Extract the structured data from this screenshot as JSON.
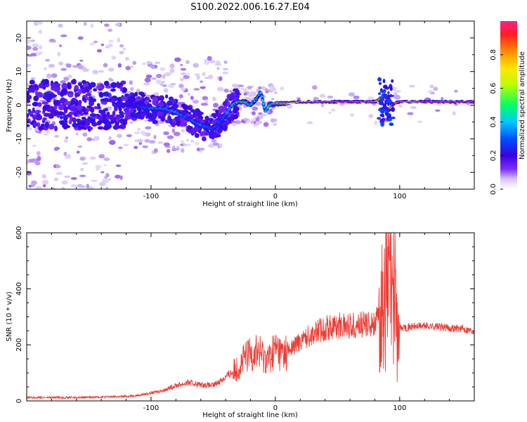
{
  "title": "S100.2022.006.16.27.E04",
  "colors": {
    "snr_line": "#ee3b33",
    "frame": "#000000",
    "colormap": [
      "#ffffff",
      "#d9c7f6",
      "#7b2ff7",
      "#4b00e0",
      "#0033ff",
      "#00c8ff",
      "#00ff66",
      "#b8ff00",
      "#ffe600",
      "#ff8a00",
      "#ff1e1e",
      "#ff1e8c"
    ]
  },
  "chart_data": [
    {
      "type": "heatmap",
      "title": "",
      "xlabel": "Height of straight line (km)",
      "ylabel": "Frequency (Hz)",
      "xlim": [
        -200,
        160
      ],
      "ylim": [
        -25,
        25
      ],
      "xticks": [
        -100,
        0,
        100
      ],
      "yticks": [
        -20,
        -10,
        0,
        10,
        20
      ],
      "grid": false,
      "colorbar": {
        "label": "Normalized spectral amplitude",
        "range": [
          0,
          1
        ],
        "ticks": [
          "0.0",
          "0.2",
          "0.4",
          "0.6",
          "0.8"
        ]
      },
      "ridge": {
        "height_km": [
          -130,
          -115,
          -100,
          -90,
          -80,
          -70,
          -60,
          -50,
          -45,
          -40,
          -35,
          -30,
          -25,
          -20,
          -15,
          -12,
          -10,
          -8,
          -5,
          0,
          10,
          20,
          40,
          60,
          80,
          85,
          88,
          90,
          95,
          100,
          110,
          120,
          140,
          160
        ],
        "freq_hz": [
          0,
          0,
          -1,
          -1,
          -2,
          -4,
          -6,
          -7,
          -5,
          -3,
          0,
          1,
          1,
          0,
          2,
          4,
          1,
          -2,
          0,
          0.5,
          0.5,
          1,
          1,
          1,
          1,
          2,
          4,
          -2,
          0.5,
          1,
          1,
          1,
          1,
          1
        ],
        "amplitude": [
          0.15,
          0.2,
          0.35,
          0.35,
          0.4,
          0.3,
          0.35,
          0.3,
          0.3,
          0.35,
          0.4,
          0.5,
          0.55,
          0.5,
          0.45,
          0.4,
          0.4,
          0.45,
          0.5,
          0.55,
          0.7,
          0.8,
          0.85,
          0.9,
          0.85,
          0.6,
          0.3,
          0.2,
          0.9,
          0.9,
          0.75,
          0.9,
          0.9,
          0.9
        ]
      }
    },
    {
      "type": "line",
      "title": "",
      "xlabel": "Height of straight line (km)",
      "ylabel": "SNR (10 * v/v)",
      "xlim": [
        -200,
        160
      ],
      "ylim": [
        0,
        600
      ],
      "xticks": [
        -100,
        0,
        100
      ],
      "yticks": [
        0,
        200,
        400,
        600
      ],
      "grid": false,
      "x": [
        -200,
        -180,
        -160,
        -140,
        -120,
        -110,
        -100,
        -90,
        -80,
        -70,
        -60,
        -50,
        -40,
        -30,
        -25,
        -20,
        -15,
        -10,
        -5,
        0,
        5,
        10,
        20,
        30,
        40,
        50,
        60,
        70,
        75,
        80,
        85,
        88,
        90,
        92,
        94,
        96,
        98,
        100,
        105,
        110,
        120,
        130,
        140,
        150,
        160
      ],
      "y": [
        12,
        12,
        12,
        14,
        16,
        20,
        28,
        38,
        55,
        65,
        58,
        55,
        85,
        120,
        150,
        170,
        180,
        160,
        150,
        190,
        170,
        175,
        215,
        240,
        260,
        268,
        270,
        272,
        275,
        280,
        300,
        420,
        350,
        460,
        300,
        580,
        200,
        260,
        262,
        265,
        268,
        265,
        260,
        258,
        250
      ]
    }
  ]
}
